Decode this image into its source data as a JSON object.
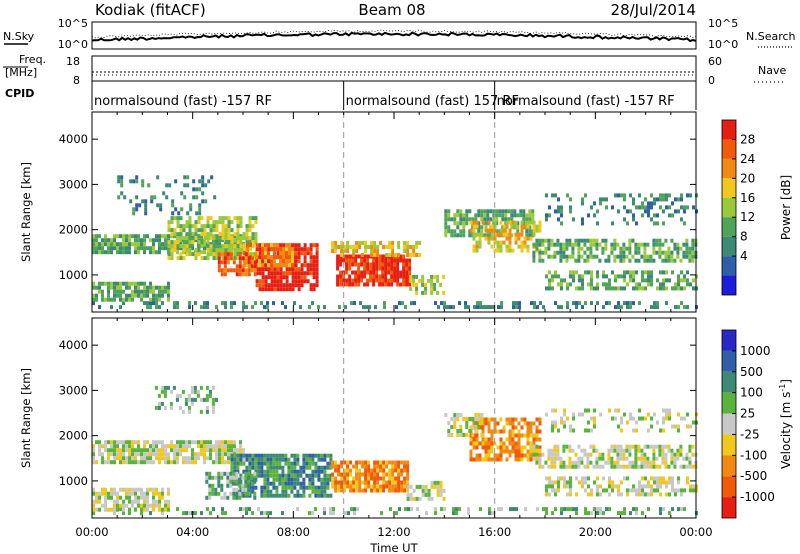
{
  "header": {
    "station": "Kodiak (fitACF)",
    "beam": "Beam 08",
    "date": "28/Jul/2014"
  },
  "strip_labels": {
    "nsky": "N.Sky",
    "nsky_hi": "10^5",
    "nsky_lo": "10^0",
    "nsky_hi_right": "10^5",
    "nsky_lo_right": "10^0",
    "nsearch": "N.Search",
    "freq": "Freq.",
    "freq_unit": "[MHz]",
    "freq_hi": "18",
    "freq_lo": "8",
    "nave_hi": "60",
    "nave_lo": "0",
    "nave": "Nave",
    "cpid": "CPID"
  },
  "cpid_segments": [
    {
      "start_hour": 0,
      "end_hour": 10,
      "label": "normalsound (fast) -157 RF"
    },
    {
      "start_hour": 10,
      "end_hour": 16,
      "label": "normalsound (fast) 157 RF"
    },
    {
      "start_hour": 16,
      "end_hour": 24,
      "label": "normalsound (fast) -157 RF"
    }
  ],
  "chart_data": [
    {
      "type": "heatmap",
      "name": "power",
      "x": {
        "label": "Time UT",
        "range_hours": [
          0,
          24
        ],
        "ticks": [
          "00:00",
          "04:00",
          "08:00",
          "12:00",
          "16:00",
          "20:00",
          "00:00"
        ]
      },
      "y": {
        "label": "Slant Range [km]",
        "range": [
          180,
          4600
        ],
        "ticks": [
          1000,
          2000,
          3000,
          4000
        ]
      },
      "colorbar": {
        "label": "Power [dB]",
        "ticks": [
          "28",
          "24",
          "20",
          "16",
          "12",
          "8",
          "4"
        ],
        "colors": [
          "#1c1cd9",
          "#2f5fa8",
          "#3c8a73",
          "#4fa35a",
          "#9bc93c",
          "#f0c81e",
          "#f08a14",
          "#f05a0a",
          "#e61e14"
        ]
      },
      "bands": [
        {
          "t0": 0.0,
          "t1": 24.0,
          "r0": 300,
          "r1": 420,
          "level": 2,
          "density": 0.35
        },
        {
          "t0": 0.0,
          "t1": 6.0,
          "r0": 1480,
          "r1": 1900,
          "level": 3,
          "density": 0.8
        },
        {
          "t0": 0.0,
          "t1": 3.0,
          "r0": 450,
          "r1": 850,
          "level": 3,
          "density": 0.75
        },
        {
          "t0": 3.0,
          "t1": 6.5,
          "r0": 1400,
          "r1": 2300,
          "level": 4,
          "density": 0.7
        },
        {
          "t0": 6.5,
          "t1": 9.0,
          "r0": 700,
          "r1": 1700,
          "level": 8,
          "density": 0.85
        },
        {
          "t0": 6.0,
          "t1": 8.0,
          "r0": 1200,
          "r1": 1700,
          "level": 6,
          "density": 0.8
        },
        {
          "t0": 5.0,
          "t1": 6.5,
          "r0": 1000,
          "r1": 1500,
          "level": 7,
          "density": 0.6
        },
        {
          "t0": 9.7,
          "t1": 12.6,
          "r0": 750,
          "r1": 1450,
          "level": 8,
          "density": 0.9
        },
        {
          "t0": 9.5,
          "t1": 13.0,
          "r0": 1450,
          "r1": 1750,
          "level": 5,
          "density": 0.6
        },
        {
          "t0": 12.6,
          "t1": 14.0,
          "r0": 600,
          "r1": 1000,
          "level": 4,
          "density": 0.6
        },
        {
          "t0": 14.0,
          "t1": 17.5,
          "r0": 1900,
          "r1": 2450,
          "level": 3,
          "density": 0.7
        },
        {
          "t0": 15.0,
          "t1": 17.8,
          "r0": 1500,
          "r1": 2200,
          "level": 5,
          "density": 0.55
        },
        {
          "t0": 17.5,
          "t1": 24.0,
          "r0": 1300,
          "r1": 1800,
          "level": 3,
          "density": 0.6
        },
        {
          "t0": 18.0,
          "t1": 24.0,
          "r0": 700,
          "r1": 1100,
          "level": 3,
          "density": 0.55
        },
        {
          "t0": 1.0,
          "t1": 5.0,
          "r0": 2400,
          "r1": 3200,
          "level": 2,
          "density": 0.2
        },
        {
          "t0": 18.0,
          "t1": 24.0,
          "r0": 2100,
          "r1": 2800,
          "level": 2,
          "density": 0.25
        }
      ]
    },
    {
      "type": "heatmap",
      "name": "velocity",
      "x": {
        "label": "Time UT",
        "range_hours": [
          0,
          24
        ],
        "ticks": [
          "00:00",
          "04:00",
          "08:00",
          "12:00",
          "16:00",
          "20:00",
          "00:00"
        ]
      },
      "y": {
        "label": "Slant Range [km]",
        "range": [
          180,
          4600
        ],
        "ticks": [
          1000,
          2000,
          3000,
          4000
        ]
      },
      "colorbar": {
        "label": "Velocity [m s",
        "label_sup": "-1",
        "label_end": "]",
        "ticks": [
          "1000",
          "500",
          "100",
          "25",
          "-25",
          "-100",
          "-500",
          "-1000"
        ],
        "colors": [
          "#2828c8",
          "#2f5fa8",
          "#3c8a73",
          "#5ab43c",
          "#c8c8c8",
          "#f0c81e",
          "#f08a14",
          "#f05a0a",
          "#e61e14"
        ]
      },
      "bands": [
        {
          "t0": 0.0,
          "t1": 24.0,
          "r0": 300,
          "r1": 420,
          "level": 3,
          "density": 0.3
        },
        {
          "t0": 0.0,
          "t1": 6.0,
          "r0": 1400,
          "r1": 1900,
          "level": 4,
          "density": 0.8
        },
        {
          "t0": 0.0,
          "t1": 3.0,
          "r0": 400,
          "r1": 850,
          "level": 4,
          "density": 0.75
        },
        {
          "t0": 2.5,
          "t1": 5.0,
          "r0": 2500,
          "r1": 3100,
          "level": 3,
          "density": 0.35
        },
        {
          "t0": 5.5,
          "t1": 9.5,
          "r0": 700,
          "r1": 1600,
          "level": 2,
          "density": 0.8
        },
        {
          "t0": 4.5,
          "t1": 6.5,
          "r0": 600,
          "r1": 1200,
          "level": 3,
          "density": 0.55
        },
        {
          "t0": 9.5,
          "t1": 12.5,
          "r0": 800,
          "r1": 1450,
          "level": 6,
          "density": 0.85
        },
        {
          "t0": 12.5,
          "t1": 14.0,
          "r0": 600,
          "r1": 1000,
          "level": 4,
          "density": 0.6
        },
        {
          "t0": 15.0,
          "t1": 17.8,
          "r0": 1500,
          "r1": 2400,
          "level": 6,
          "density": 0.7
        },
        {
          "t0": 14.0,
          "t1": 15.5,
          "r0": 2000,
          "r1": 2500,
          "level": 4,
          "density": 0.5
        },
        {
          "t0": 17.5,
          "t1": 24.0,
          "r0": 1300,
          "r1": 1800,
          "level": 4,
          "density": 0.6
        },
        {
          "t0": 18.0,
          "t1": 24.0,
          "r0": 700,
          "r1": 1100,
          "level": 4,
          "density": 0.55
        },
        {
          "t0": 18.0,
          "t1": 24.0,
          "r0": 2100,
          "r1": 2600,
          "level": 4,
          "density": 0.25
        }
      ]
    }
  ]
}
